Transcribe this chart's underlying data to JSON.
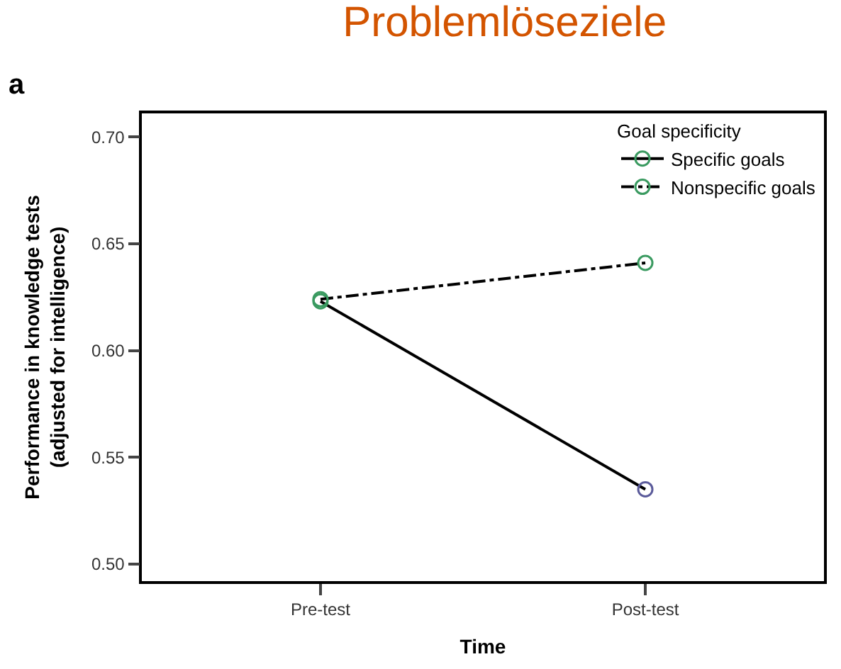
{
  "chart_data": {
    "type": "line",
    "title": "Problemlöseziele",
    "xlabel": "Time",
    "ylabel": "Performance in knowledge tests\n(adjusted for intelligence)",
    "legend_title": "Goal specificity",
    "annotations": [
      "a"
    ],
    "categories": [
      "Pre-test",
      "Post-test"
    ],
    "series": [
      {
        "name": "Specific goals",
        "color": "#000000",
        "colors": [
          "#3a9a60",
          "#5a5a9a"
        ],
        "line_style": "solid",
        "values": [
          0.623,
          0.535
        ]
      },
      {
        "name": "Nonspecific goals",
        "color": "#000000",
        "colors": [
          "#3a9a60",
          "#3a9a60"
        ],
        "line_style": "dashdot",
        "values": [
          0.624,
          0.641
        ]
      }
    ],
    "ylim": [
      0.492,
      0.711
    ],
    "yticks": [
      {
        "value": 0.5,
        "label": "0.50"
      },
      {
        "value": 0.55,
        "label": "0.55"
      },
      {
        "value": 0.6,
        "label": "0.60"
      },
      {
        "value": 0.65,
        "label": "0.65"
      },
      {
        "value": 0.7,
        "label": "0.70"
      }
    ],
    "marker": "circle",
    "legend": "top right"
  }
}
